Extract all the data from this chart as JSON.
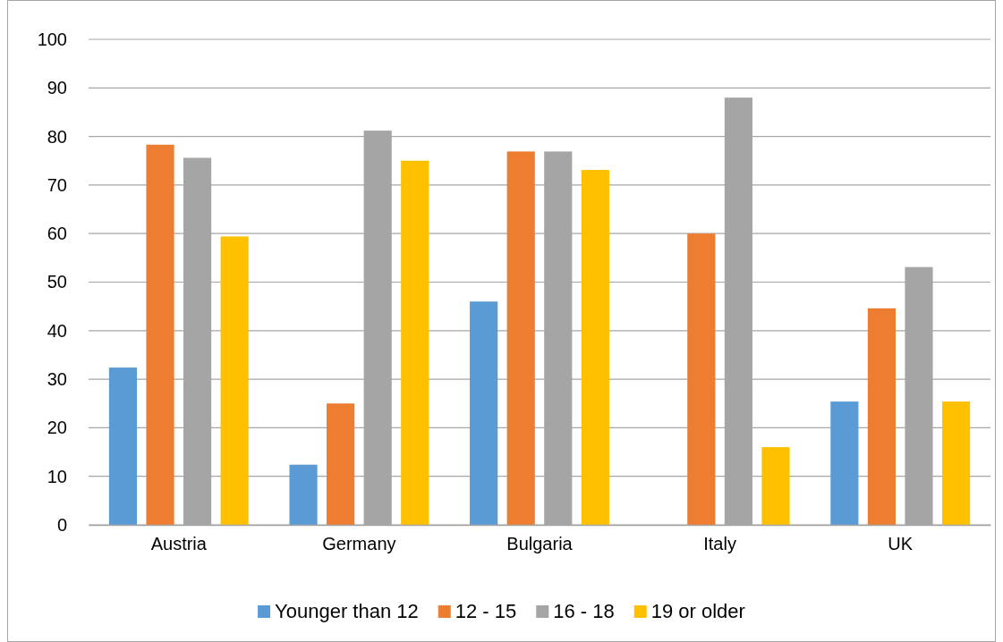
{
  "chart_data": {
    "type": "bar",
    "categories": [
      "Austria",
      "Germany",
      "Bulgaria",
      "Italy",
      "UK"
    ],
    "series": [
      {
        "name": "Younger than 12",
        "color": "#5b9bd5",
        "values": [
          32.4,
          12.4,
          46,
          0,
          25.4
        ]
      },
      {
        "name": "12 - 15",
        "color": "#ed7d31",
        "values": [
          78.3,
          25,
          76.9,
          60,
          44.6
        ]
      },
      {
        "name": "16 - 18",
        "color": "#a5a5a5",
        "values": [
          75.6,
          81.2,
          76.9,
          88,
          53.1
        ]
      },
      {
        "name": "19 or older",
        "color": "#ffc000",
        "values": [
          59.4,
          75,
          73.1,
          16,
          25.4
        ]
      }
    ],
    "ylim": [
      0,
      100
    ],
    "yticks": [
      0,
      10,
      20,
      30,
      40,
      50,
      60,
      70,
      80,
      90,
      100
    ],
    "grid": "y",
    "legend": "bottom"
  }
}
